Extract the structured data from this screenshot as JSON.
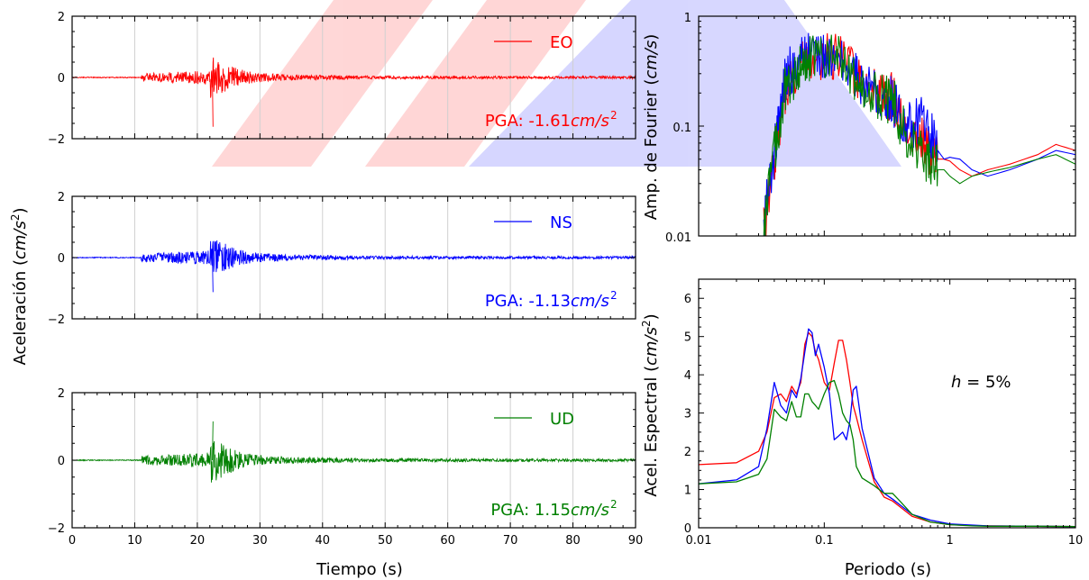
{
  "figure": {
    "time_xlabel": "Tiempo (s)",
    "acc_ylabel_main": "Aceleración (",
    "acc_ylabel_unit": "cm/s",
    "acc_ylabel_exp": "2",
    "acc_ylabel_close": ")",
    "fourier_ylabel_main": "Amp. de Fourier (",
    "fourier_ylabel_unit": "cm/s",
    "fourier_ylabel_close": ")",
    "spec_ylabel_main": "Acel. Espectral (",
    "spec_ylabel_unit": "cm/s",
    "spec_ylabel_exp": "2",
    "spec_ylabel_close": ")",
    "period_xlabel": "Periodo (s)",
    "damping_var": "h",
    "damping_rest": " = 5%"
  },
  "chart_data": [
    {
      "type": "line",
      "panel": "acceleration-EO",
      "series": [
        {
          "name": "EO",
          "color": "#ff0000",
          "duration_s": 90,
          "arrival_s": 11,
          "peak_time_s": 22,
          "pga": -1.61
        }
      ],
      "pga_text": "PGA: -1.61 ",
      "pga_unit": "cm/s",
      "pga_exp": "2",
      "xlim": [
        0,
        90
      ],
      "ylim": [
        -2,
        2
      ],
      "xticks": [
        0,
        10,
        20,
        30,
        40,
        50,
        60,
        70,
        80,
        90
      ],
      "yticks": [
        -2,
        0,
        2
      ],
      "ytick_labels": [
        "−2",
        "0",
        "2"
      ],
      "grid": true,
      "legend": "top-right"
    },
    {
      "type": "line",
      "panel": "acceleration-NS",
      "series": [
        {
          "name": "NS",
          "color": "#0000ff",
          "duration_s": 90,
          "arrival_s": 11,
          "peak_time_s": 22,
          "pga": -1.13
        }
      ],
      "pga_text": "PGA: -1.13 ",
      "pga_unit": "cm/s",
      "pga_exp": "2",
      "xlim": [
        0,
        90
      ],
      "ylim": [
        -2,
        2
      ],
      "xticks": [
        0,
        10,
        20,
        30,
        40,
        50,
        60,
        70,
        80,
        90
      ],
      "yticks": [
        -2,
        0,
        2
      ],
      "ytick_labels": [
        "−2",
        "0",
        "2"
      ],
      "grid": true,
      "legend": "top-right"
    },
    {
      "type": "line",
      "panel": "acceleration-UD",
      "series": [
        {
          "name": "UD",
          "color": "#008000",
          "duration_s": 90,
          "arrival_s": 11,
          "peak_time_s": 22,
          "pga": 1.15
        }
      ],
      "pga_text": "PGA: 1.15 ",
      "pga_unit": "cm/s",
      "pga_exp": "2",
      "xlim": [
        0,
        90
      ],
      "ylim": [
        -2,
        2
      ],
      "xticks": [
        0,
        10,
        20,
        30,
        40,
        50,
        60,
        70,
        80,
        90
      ],
      "xtick_labels": [
        "0",
        "10",
        "20",
        "30",
        "40",
        "50",
        "60",
        "70",
        "80",
        "90"
      ],
      "yticks": [
        -2,
        0,
        2
      ],
      "ytick_labels": [
        "−2",
        "0",
        "2"
      ],
      "grid": true,
      "legend": "top-right"
    },
    {
      "type": "line",
      "panel": "fourier-amplitude",
      "x_scale": "log",
      "y_scale": "log",
      "xlim": [
        0.01,
        10
      ],
      "ylim": [
        0.01,
        1
      ],
      "yticks": [
        0.01,
        0.1,
        1
      ],
      "ytick_labels": [
        "0.01",
        "0.1",
        "1"
      ],
      "x": [
        0.033,
        0.04,
        0.045,
        0.05,
        0.06,
        0.07,
        0.08,
        0.1,
        0.13,
        0.17,
        0.2,
        0.25,
        0.3,
        0.35,
        0.4,
        0.5,
        0.6,
        0.7,
        0.8,
        0.9,
        1.0,
        1.2,
        1.5,
        2.0,
        3.0,
        5.0,
        7.0,
        10.0
      ],
      "series": [
        {
          "name": "EO",
          "color": "#ff0000",
          "values": [
            0.012,
            0.05,
            0.12,
            0.25,
            0.32,
            0.42,
            0.45,
            0.43,
            0.45,
            0.33,
            0.25,
            0.22,
            0.18,
            0.19,
            0.12,
            0.09,
            0.075,
            0.055,
            0.05,
            0.05,
            0.048,
            0.04,
            0.035,
            0.04,
            0.045,
            0.055,
            0.068,
            0.06
          ]
        },
        {
          "name": "NS",
          "color": "#0000ff",
          "values": [
            0.013,
            0.06,
            0.15,
            0.3,
            0.35,
            0.45,
            0.5,
            0.42,
            0.38,
            0.3,
            0.26,
            0.21,
            0.2,
            0.17,
            0.13,
            0.1,
            0.12,
            0.085,
            0.06,
            0.05,
            0.052,
            0.05,
            0.04,
            0.035,
            0.04,
            0.05,
            0.06,
            0.055
          ]
        },
        {
          "name": "UD",
          "color": "#008000",
          "values": [
            0.012,
            0.055,
            0.13,
            0.25,
            0.3,
            0.4,
            0.42,
            0.4,
            0.42,
            0.3,
            0.24,
            0.2,
            0.17,
            0.18,
            0.11,
            0.07,
            0.06,
            0.045,
            0.04,
            0.04,
            0.035,
            0.03,
            0.035,
            0.038,
            0.042,
            0.05,
            0.055,
            0.045
          ]
        }
      ]
    },
    {
      "type": "line",
      "panel": "response-spectrum",
      "x_scale": "log",
      "xlim": [
        0.01,
        10
      ],
      "ylim": [
        0,
        6.5
      ],
      "xticks": [
        0.01,
        0.1,
        1,
        10
      ],
      "xtick_labels": [
        "0.01",
        "0.1",
        "1",
        "10"
      ],
      "yticks": [
        0,
        1,
        2,
        3,
        4,
        5,
        6
      ],
      "ytick_labels": [
        "0",
        "1",
        "2",
        "3",
        "4",
        "5",
        "6"
      ],
      "x": [
        0.01,
        0.02,
        0.03,
        0.035,
        0.04,
        0.045,
        0.05,
        0.055,
        0.06,
        0.065,
        0.07,
        0.075,
        0.08,
        0.085,
        0.09,
        0.1,
        0.11,
        0.12,
        0.13,
        0.14,
        0.15,
        0.16,
        0.17,
        0.18,
        0.2,
        0.25,
        0.3,
        0.35,
        0.4,
        0.5,
        0.7,
        1.0,
        1.5,
        2.0,
        5.0,
        10.0
      ],
      "series": [
        {
          "name": "EO",
          "color": "#ff0000",
          "values": [
            1.65,
            1.7,
            2.0,
            2.5,
            3.4,
            3.5,
            3.3,
            3.7,
            3.5,
            3.8,
            4.8,
            5.1,
            5.0,
            4.6,
            4.4,
            3.8,
            3.6,
            4.3,
            4.9,
            4.9,
            4.4,
            3.8,
            3.2,
            2.9,
            2.3,
            1.2,
            0.8,
            0.7,
            0.55,
            0.3,
            0.15,
            0.08,
            0.06,
            0.05,
            0.04,
            0.03
          ]
        },
        {
          "name": "NS",
          "color": "#0000ff",
          "values": [
            1.15,
            1.25,
            1.6,
            2.6,
            3.8,
            3.2,
            3.0,
            3.6,
            3.4,
            3.9,
            4.6,
            5.2,
            5.1,
            4.5,
            4.8,
            4.2,
            3.5,
            2.3,
            2.4,
            2.5,
            2.3,
            2.8,
            3.6,
            3.7,
            2.6,
            1.3,
            0.9,
            0.75,
            0.6,
            0.35,
            0.2,
            0.1,
            0.07,
            0.05,
            0.04,
            0.03
          ]
        },
        {
          "name": "UD",
          "color": "#008000",
          "values": [
            1.15,
            1.2,
            1.4,
            1.8,
            3.1,
            2.9,
            2.8,
            3.3,
            2.9,
            2.9,
            3.5,
            3.5,
            3.3,
            3.2,
            3.1,
            3.5,
            3.8,
            3.85,
            3.5,
            3.0,
            2.8,
            2.7,
            2.3,
            1.6,
            1.3,
            1.1,
            0.9,
            0.9,
            0.7,
            0.35,
            0.15,
            0.08,
            0.05,
            0.04,
            0.04,
            0.03
          ]
        }
      ]
    }
  ]
}
